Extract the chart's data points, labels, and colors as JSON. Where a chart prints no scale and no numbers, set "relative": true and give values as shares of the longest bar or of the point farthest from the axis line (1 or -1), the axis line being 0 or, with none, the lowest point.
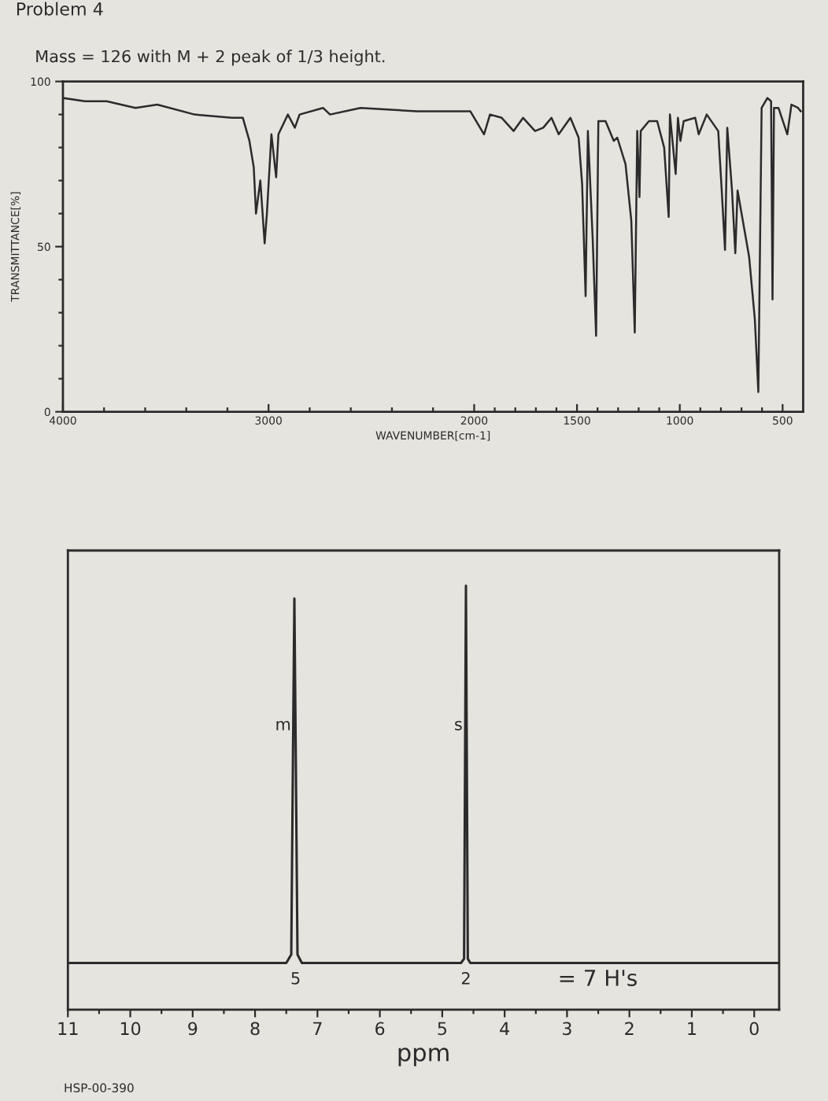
{
  "chart_data": [
    {
      "type": "line",
      "title": "Problem 4",
      "subtitle": "Mass = 126 with M + 2 peak of 1/3 height.",
      "xlabel": "WAVENUMBER[cm-1]",
      "ylabel": "TRANSMITTANCE[%]",
      "x": [
        4000,
        3893,
        3787,
        3647,
        3541,
        3360,
        3178,
        3125,
        3093,
        3072,
        3061,
        3040,
        3019,
        3008,
        2986,
        2963,
        2952,
        2906,
        2872,
        2849,
        2735,
        2701,
        2553,
        2280,
        2019,
        1952,
        1923,
        1866,
        1808,
        1762,
        1704,
        1664,
        1624,
        1589,
        1532,
        1492,
        1475,
        1458,
        1447,
        1424,
        1407,
        1396,
        1361,
        1321,
        1304,
        1264,
        1236,
        1219,
        1207,
        1196,
        1190,
        1150,
        1110,
        1076,
        1054,
        1048,
        1020,
        1009,
        997,
        981,
        925,
        908,
        869,
        813,
        796,
        780,
        769,
        746,
        730,
        719,
        663,
        635,
        618,
        602,
        574,
        556,
        549,
        542,
        520,
        477,
        457,
        425,
        412
      ],
      "series": [
        {
          "color": "#2b2b2b",
          "values": [
            95,
            94,
            94,
            92,
            93,
            90,
            89,
            89,
            82,
            74,
            60,
            70,
            51,
            60,
            84,
            71,
            84,
            90,
            86,
            90,
            92,
            90,
            92,
            91,
            91,
            84,
            90,
            89,
            85,
            89,
            85,
            86,
            89,
            84,
            89,
            83,
            69,
            35,
            85,
            53,
            23,
            88,
            88,
            82,
            83,
            75,
            58,
            24,
            85,
            65,
            85,
            88,
            88,
            80,
            59,
            90,
            72,
            89,
            82,
            88,
            89,
            84,
            90,
            85,
            67,
            49,
            86,
            67,
            48,
            67,
            47,
            28,
            6,
            92,
            95,
            94,
            34,
            92,
            92,
            84,
            93,
            92,
            91
          ]
        }
      ],
      "xlim": [
        4000,
        400
      ],
      "ylim": [
        0,
        100
      ],
      "xticks": [
        4000,
        {
          "value": 3800,
          "label": null
        },
        {
          "value": 3600,
          "label": null
        },
        {
          "value": 3400,
          "label": null
        },
        {
          "value": 3200,
          "label": null
        },
        3000,
        {
          "value": 2800,
          "label": null
        },
        {
          "value": 2600,
          "label": null
        },
        {
          "value": 2400,
          "label": null
        },
        {
          "value": 2200,
          "label": null
        },
        2000,
        {
          "value": 1900,
          "label": null
        },
        {
          "value": 1800,
          "label": null
        },
        {
          "value": 1700,
          "label": null
        },
        {
          "value": 1600,
          "label": null
        },
        1500,
        {
          "value": 1400,
          "label": null
        },
        {
          "value": 1300,
          "label": null
        },
        {
          "value": 1200,
          "label": null
        },
        {
          "value": 1100,
          "label": null
        },
        1000,
        {
          "value": 900,
          "label": null
        },
        {
          "value": 800,
          "label": null
        },
        {
          "value": 700,
          "label": null
        },
        {
          "value": 600,
          "label": null
        },
        500
      ],
      "yticks": [
        0,
        {
          "value": 10,
          "label": null
        },
        {
          "value": 20,
          "label": null
        },
        {
          "value": 30,
          "label": null
        },
        {
          "value": 40,
          "label": null
        },
        50,
        {
          "value": 60,
          "label": null
        },
        {
          "value": 70,
          "label": null
        },
        {
          "value": 80,
          "label": null
        },
        {
          "value": 90,
          "label": null
        },
        100
      ]
    },
    {
      "type": "line",
      "xlabel": "ppm",
      "relative": true,
      "tick_labels": "x",
      "x": [
        11,
        7.5,
        7.42,
        7.39,
        7.37,
        7.35,
        7.32,
        7.25,
        4.7,
        4.65,
        4.62,
        4.59,
        4.55,
        -0.4
      ],
      "series": [
        {
          "color": "#2b2b2b",
          "values": [
            0.11,
            0.11,
            0.13,
            0.64,
            0.97,
            0.64,
            0.13,
            0.11,
            0.11,
            0.12,
            1,
            0.12,
            0.11,
            0.11
          ]
        }
      ],
      "xlim": [
        11,
        -0.4
      ],
      "xticks": [
        11,
        {
          "value": 10.5,
          "label": null
        },
        10,
        {
          "value": 9.5,
          "label": null
        },
        9,
        {
          "value": 8.5,
          "label": null
        },
        8,
        {
          "value": 7.5,
          "label": null
        },
        7,
        {
          "value": 6.5,
          "label": null
        },
        6,
        {
          "value": 5.5,
          "label": null
        },
        5,
        {
          "value": 4.5,
          "label": null
        },
        4,
        {
          "value": 3.5,
          "label": null
        },
        3,
        {
          "value": 2.5,
          "label": null
        },
        2,
        {
          "value": 1.5,
          "label": null
        },
        1,
        {
          "value": 0.5,
          "label": null
        },
        0
      ],
      "annotations": [
        {
          "text": "m",
          "x": 7.37,
          "y": 0.67
        },
        {
          "text": "s",
          "x": 4.62,
          "y": 0.67
        },
        {
          "text": "5",
          "x": 7.35,
          "y": 0.11
        },
        {
          "text": "2",
          "x": 4.62,
          "y": 0.11
        },
        "= 7 H's",
        "HSP-00-390"
      ]
    }
  ]
}
